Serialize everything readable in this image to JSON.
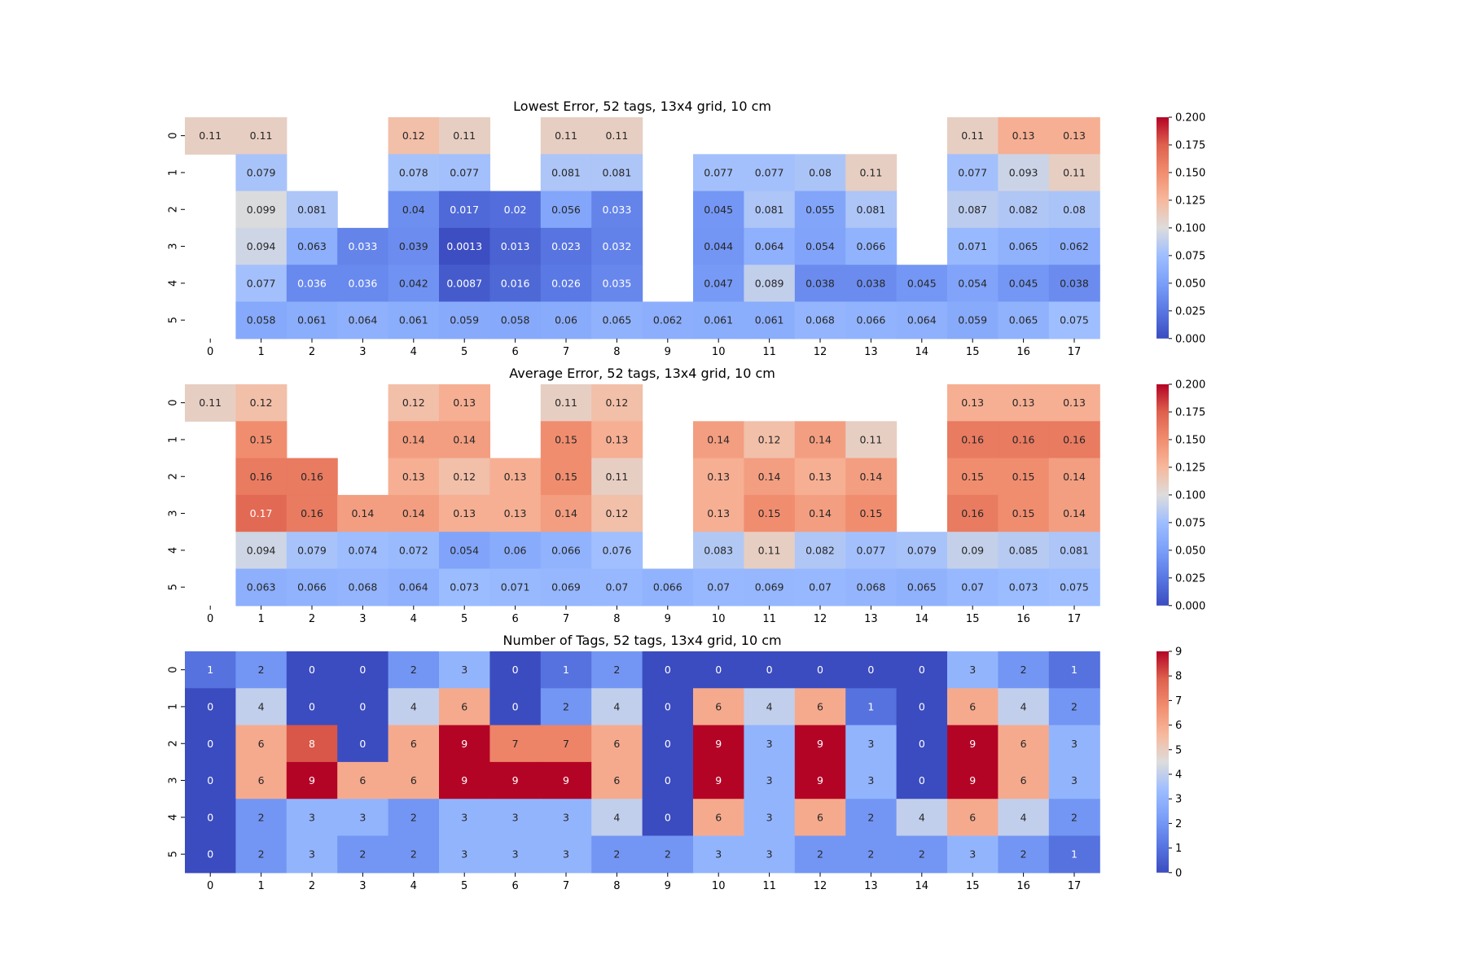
{
  "chart_data": [
    {
      "type": "heatmap",
      "title": "Lowest Error, 52 tags, 13x4 grid, 10 cm",
      "xlabel": "",
      "ylabel": "",
      "x": [
        "0",
        "1",
        "2",
        "3",
        "4",
        "5",
        "6",
        "7",
        "8",
        "9",
        "10",
        "11",
        "12",
        "13",
        "14",
        "15",
        "16",
        "17"
      ],
      "y": [
        "0",
        "1",
        "2",
        "3",
        "4",
        "5"
      ],
      "values": [
        [
          0.11,
          0.11,
          null,
          null,
          0.12,
          0.11,
          null,
          0.11,
          0.11,
          null,
          null,
          null,
          null,
          null,
          null,
          0.11,
          0.13,
          0.13
        ],
        [
          null,
          0.079,
          null,
          null,
          0.078,
          0.077,
          null,
          0.081,
          0.081,
          null,
          0.077,
          0.077,
          0.08,
          0.11,
          null,
          0.077,
          0.093,
          0.11
        ],
        [
          null,
          0.099,
          0.081,
          null,
          0.04,
          0.017,
          0.02,
          0.056,
          0.033,
          null,
          0.045,
          0.081,
          0.055,
          0.081,
          null,
          0.087,
          0.082,
          0.08
        ],
        [
          null,
          0.094,
          0.063,
          0.033,
          0.039,
          0.0013,
          0.013,
          0.023,
          0.032,
          null,
          0.044,
          0.064,
          0.054,
          0.066,
          null,
          0.071,
          0.065,
          0.062
        ],
        [
          null,
          0.077,
          0.036,
          0.036,
          0.042,
          0.0087,
          0.016,
          0.026,
          0.035,
          null,
          0.047,
          0.089,
          0.038,
          0.038,
          0.045,
          0.054,
          0.045,
          0.038
        ],
        [
          null,
          0.058,
          0.061,
          0.064,
          0.061,
          0.059,
          0.058,
          0.06,
          0.065,
          0.062,
          0.061,
          0.061,
          0.068,
          0.066,
          0.064,
          0.059,
          0.065,
          0.075
        ]
      ],
      "vmin": 0,
      "vmax": 0.2,
      "colormap": "coolwarm",
      "colorbar_ticks": [
        "0.000",
        "0.025",
        "0.050",
        "0.075",
        "0.100",
        "0.125",
        "0.150",
        "0.175",
        "0.200"
      ]
    },
    {
      "type": "heatmap",
      "title": "Average Error, 52 tags, 13x4 grid, 10 cm",
      "xlabel": "",
      "ylabel": "",
      "x": [
        "0",
        "1",
        "2",
        "3",
        "4",
        "5",
        "6",
        "7",
        "8",
        "9",
        "10",
        "11",
        "12",
        "13",
        "14",
        "15",
        "16",
        "17"
      ],
      "y": [
        "0",
        "1",
        "2",
        "3",
        "4",
        "5"
      ],
      "values": [
        [
          0.11,
          0.12,
          null,
          null,
          0.12,
          0.13,
          null,
          0.11,
          0.12,
          null,
          null,
          null,
          null,
          null,
          null,
          0.13,
          0.13,
          0.13
        ],
        [
          null,
          0.15,
          null,
          null,
          0.14,
          0.14,
          null,
          0.15,
          0.13,
          null,
          0.14,
          0.12,
          0.14,
          0.11,
          null,
          0.16,
          0.16,
          0.16
        ],
        [
          null,
          0.16,
          0.16,
          null,
          0.13,
          0.12,
          0.13,
          0.15,
          0.11,
          null,
          0.13,
          0.14,
          0.13,
          0.14,
          null,
          0.15,
          0.15,
          0.14
        ],
        [
          null,
          0.17,
          0.16,
          0.14,
          0.14,
          0.13,
          0.13,
          0.14,
          0.12,
          null,
          0.13,
          0.15,
          0.14,
          0.15,
          null,
          0.16,
          0.15,
          0.14
        ],
        [
          null,
          0.094,
          0.079,
          0.074,
          0.072,
          0.054,
          0.06,
          0.066,
          0.076,
          null,
          0.083,
          0.11,
          0.082,
          0.077,
          0.079,
          0.09,
          0.085,
          0.081
        ],
        [
          null,
          0.063,
          0.066,
          0.068,
          0.064,
          0.073,
          0.071,
          0.069,
          0.07,
          0.066,
          0.07,
          0.069,
          0.07,
          0.068,
          0.065,
          0.07,
          0.073,
          0.075
        ]
      ],
      "vmin": 0,
      "vmax": 0.2,
      "colormap": "coolwarm",
      "colorbar_ticks": [
        "0.000",
        "0.025",
        "0.050",
        "0.075",
        "0.100",
        "0.125",
        "0.150",
        "0.175",
        "0.200"
      ]
    },
    {
      "type": "heatmap",
      "title": "Number of Tags, 52 tags, 13x4 grid, 10 cm",
      "xlabel": "",
      "ylabel": "",
      "x": [
        "0",
        "1",
        "2",
        "3",
        "4",
        "5",
        "6",
        "7",
        "8",
        "9",
        "10",
        "11",
        "12",
        "13",
        "14",
        "15",
        "16",
        "17"
      ],
      "y": [
        "0",
        "1",
        "2",
        "3",
        "4",
        "5"
      ],
      "values": [
        [
          1,
          2,
          0,
          0,
          2,
          3,
          0,
          1,
          2,
          0,
          0,
          0,
          0,
          0,
          0,
          3,
          2,
          1
        ],
        [
          0,
          4,
          0,
          0,
          4,
          6,
          0,
          2,
          4,
          0,
          6,
          4,
          6,
          1,
          0,
          6,
          4,
          2
        ],
        [
          0,
          6,
          8,
          0,
          6,
          9,
          7,
          7,
          6,
          0,
          9,
          3,
          9,
          3,
          0,
          9,
          6,
          3
        ],
        [
          0,
          6,
          9,
          6,
          6,
          9,
          9,
          9,
          6,
          0,
          9,
          3,
          9,
          3,
          0,
          9,
          6,
          3
        ],
        [
          0,
          2,
          3,
          3,
          2,
          3,
          3,
          3,
          4,
          0,
          6,
          3,
          6,
          2,
          4,
          6,
          4,
          2
        ],
        [
          0,
          2,
          3,
          2,
          2,
          3,
          3,
          3,
          2,
          2,
          3,
          3,
          2,
          2,
          2,
          3,
          2,
          1
        ]
      ],
      "vmin": 0,
      "vmax": 9,
      "colormap": "coolwarm",
      "colorbar_ticks": [
        "0",
        "1",
        "2",
        "3",
        "4",
        "5",
        "6",
        "7",
        "8",
        "9"
      ]
    }
  ]
}
